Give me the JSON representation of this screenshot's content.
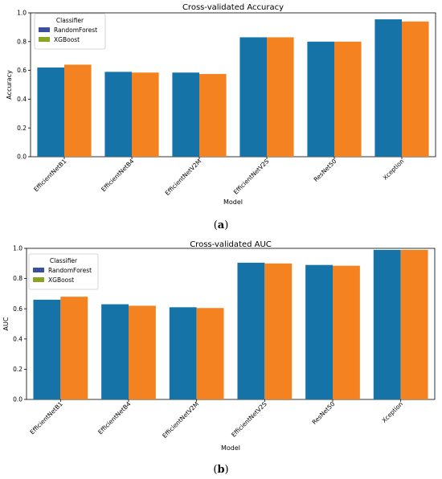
{
  "chart_data": [
    {
      "type": "bar",
      "title": "Cross-validated Accuracy",
      "xlabel": "Model",
      "ylabel": "Accuracy",
      "ylim": [
        0,
        1.0
      ],
      "yticks": [
        "0.0",
        "0.2",
        "0.4",
        "0.6",
        "0.8",
        "1.0"
      ],
      "categories": [
        "EfficientNetB1",
        "EfficientNetB4",
        "EfficientNetV2M",
        "EfficientNetV2S",
        "ResNet50",
        "Xception"
      ],
      "series": [
        {
          "name": "RandomForest",
          "values": [
            0.62,
            0.59,
            0.585,
            0.83,
            0.8,
            0.955
          ]
        },
        {
          "name": "XGBoost",
          "values": [
            0.64,
            0.585,
            0.575,
            0.83,
            0.8,
            0.94
          ]
        }
      ],
      "legend": {
        "title": "Classifier",
        "position": "top-left"
      },
      "caption": "(a)"
    },
    {
      "type": "bar",
      "title": "Cross-validated AUC",
      "xlabel": "Model",
      "ylabel": "AUC",
      "ylim": [
        0,
        1.0
      ],
      "yticks": [
        "0.0",
        "0.2",
        "0.4",
        "0.6",
        "0.8",
        "1.0"
      ],
      "categories": [
        "EfficientNetB1",
        "EfficientNetB4",
        "EfficientNetV2M",
        "EfficientNetV2S",
        "ResNet50",
        "Xception"
      ],
      "series": [
        {
          "name": "RandomForest",
          "values": [
            0.66,
            0.63,
            0.61,
            0.905,
            0.89,
            0.99
          ]
        },
        {
          "name": "XGBoost",
          "values": [
            0.68,
            0.62,
            0.605,
            0.9,
            0.885,
            0.99
          ]
        }
      ],
      "legend": {
        "title": "Classifier",
        "position": "top-left"
      },
      "caption": "(b)"
    }
  ],
  "colors": {
    "bar_series_1": "#1673a8",
    "bar_series_2": "#f58220",
    "legend_swatch_1": "#3b4fa0",
    "legend_swatch_2": "#8ca520"
  }
}
